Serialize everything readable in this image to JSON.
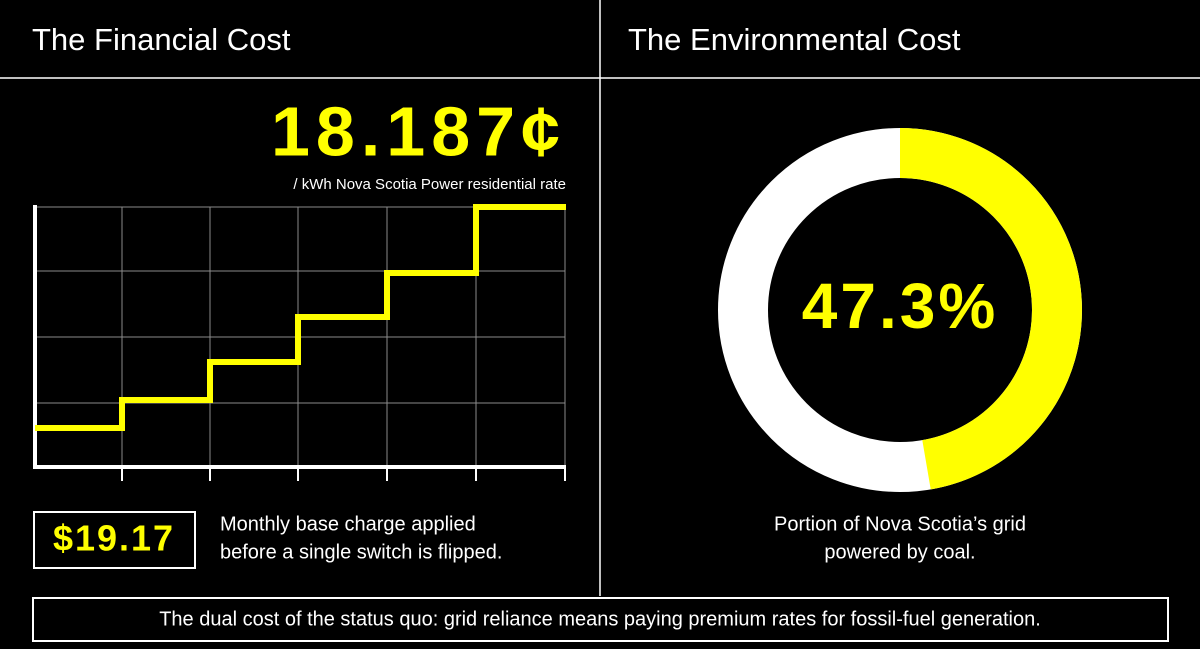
{
  "financial": {
    "title": "The Financial Cost",
    "rate": "18.187¢",
    "rate_caption": "/ kWh Nova Scotia Power residential rate",
    "base_charge": "$19.17",
    "base_caption": [
      "Monthly base charge applied",
      "before a single switch is flipped."
    ]
  },
  "environmental": {
    "title": "The Environmental Cost",
    "donut": {
      "type": "pie",
      "values": [
        47.3
      ],
      "value_labels": [
        "47.3%"
      ],
      "color": "#ffff00"
    },
    "caption": [
      "Portion of Nova Scotia’s grid",
      "powered by coal."
    ]
  },
  "footer": "The dual cost of the status quo: grid reliance means paying premium rates for fossil-fuel generation."
}
